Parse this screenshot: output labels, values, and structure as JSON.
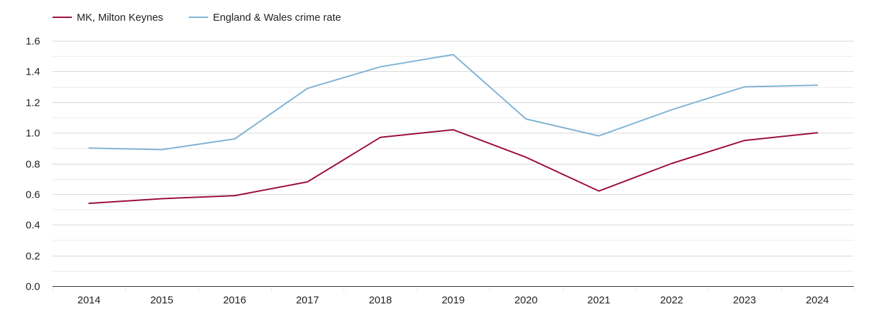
{
  "chart_data": {
    "type": "line",
    "title": "",
    "xlabel": "",
    "ylabel": "",
    "x": [
      "2014",
      "2015",
      "2016",
      "2017",
      "2018",
      "2019",
      "2020",
      "2021",
      "2022",
      "2023",
      "2024"
    ],
    "ylim": [
      0,
      1.6
    ],
    "yticks": [
      "0.0",
      "0.2",
      "0.4",
      "0.6",
      "0.8",
      "1.0",
      "1.2",
      "1.4",
      "1.6"
    ],
    "grid": true,
    "legend_position": "top-left",
    "series": [
      {
        "name": "MK, Milton Keynes",
        "color": "#9b0d36",
        "values": [
          0.54,
          0.57,
          0.59,
          0.68,
          0.97,
          1.02,
          0.84,
          0.62,
          0.8,
          0.95,
          1.0
        ]
      },
      {
        "name": "England & Wales crime rate",
        "color": "#7fb3d5",
        "values": [
          0.9,
          0.89,
          0.96,
          1.29,
          1.43,
          1.51,
          1.09,
          0.98,
          1.15,
          1.3,
          1.31
        ]
      }
    ]
  }
}
